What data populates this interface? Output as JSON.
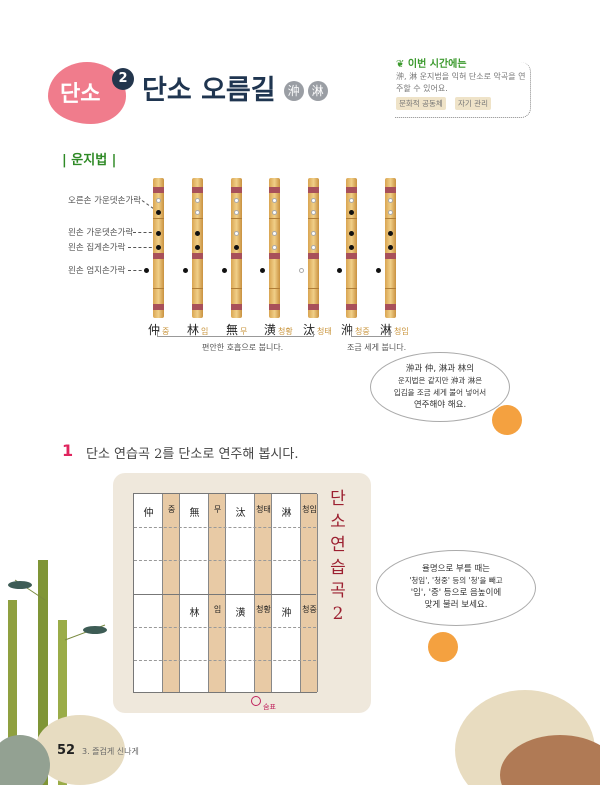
{
  "header": {
    "badge": "단소",
    "lesson_num": "2",
    "title": "단소 오름길",
    "hanja": [
      "㳞",
      "淋"
    ]
  },
  "goal": {
    "title": "이번 시간에는",
    "text": "㳞, 淋 운지법을 익혀 단소로 악곡을 연주할 수 있어요.",
    "tags": [
      "문화적 공동체",
      "자기 관리"
    ]
  },
  "section": "| 운지법 |",
  "fingering": {
    "finger_labels": [
      "오른손 가운뎃손가락",
      "왼손 가운뎃손가락",
      "왼손 집게손가락",
      "왼손 엄지손가락"
    ],
    "notes": [
      {
        "hanja": "仲",
        "reading": "중",
        "holes": [
          "open",
          "closed",
          "closed",
          "closed"
        ],
        "thumb": "closed"
      },
      {
        "hanja": "林",
        "reading": "임",
        "holes": [
          "open",
          "open",
          "closed",
          "closed"
        ],
        "thumb": "closed"
      },
      {
        "hanja": "無",
        "reading": "무",
        "holes": [
          "open",
          "open",
          "open",
          "closed"
        ],
        "thumb": "closed"
      },
      {
        "hanja": "潢",
        "reading": "청황",
        "holes": [
          "open",
          "open",
          "open",
          "open"
        ],
        "thumb": "closed"
      },
      {
        "hanja": "汰",
        "reading": "청태",
        "holes": [
          "open",
          "open",
          "open",
          "open"
        ],
        "thumb": "open"
      },
      {
        "hanja": "㳞",
        "reading": "청중",
        "holes": [
          "open",
          "closed",
          "closed",
          "closed"
        ],
        "thumb": "closed"
      },
      {
        "hanja": "淋",
        "reading": "청임",
        "holes": [
          "open",
          "open",
          "closed",
          "closed"
        ],
        "thumb": "closed"
      }
    ],
    "bracket1": "편안한 호흡으로 붑니다.",
    "bracket2": "조금 세게 붑니다."
  },
  "bubble1": [
    "㳞과 仲, 淋과 林의",
    "운지법은 같지만 㳞과 淋은",
    "입김을 조금 세게 불어 넣어서",
    "연주해야 해요."
  ],
  "question": {
    "number": "1",
    "text": "단소 연습곡 2를 단소로 연주해 봅시다."
  },
  "score": {
    "title": "단소 연습곡 2",
    "row1": [
      "仲",
      "중",
      "無",
      "무",
      "汰",
      "청태",
      "淋",
      "청임"
    ],
    "row2": [
      "",
      "",
      "林",
      "임",
      "潢",
      "청황",
      "㳞",
      "청중"
    ],
    "mark": "숨표"
  },
  "bubble2": [
    "율명으로 부를 때는",
    "'청임', '청중' 등의 '청'을 빼고",
    "'임', '중' 등으로 음높이에",
    "맞게 불러 보세요."
  ],
  "footer": {
    "page": "52",
    "chapter": "3. 즐겁게 신나게"
  },
  "colors": {
    "accent": "#e0245e",
    "title": "#1f3550",
    "green": "#2f8a26",
    "flute": "#e8b766",
    "score_title": "#9c2030"
  }
}
